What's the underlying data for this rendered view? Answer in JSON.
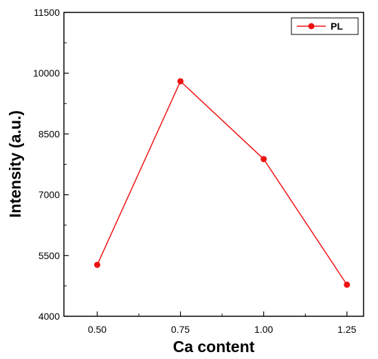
{
  "chart_data": {
    "type": "line",
    "x": [
      0.5,
      0.75,
      1.0,
      1.25
    ],
    "series": [
      {
        "name": "PL",
        "values": [
          5270,
          9800,
          7880,
          4780
        ]
      }
    ],
    "x_ticks": [
      "0.50",
      "0.75",
      "1.00",
      "1.25"
    ],
    "y_ticks": [
      "4000",
      "5500",
      "7000",
      "8500",
      "10000",
      "11500"
    ],
    "xlabel": "Ca content",
    "ylabel": "Intensity (a.u.)",
    "xlim": [
      0.4,
      1.3
    ],
    "ylim": [
      4000,
      11500
    ],
    "grid": false,
    "legend": "top-right",
    "colors": {
      "series": "#ee1111",
      "axis": "#000000"
    }
  }
}
